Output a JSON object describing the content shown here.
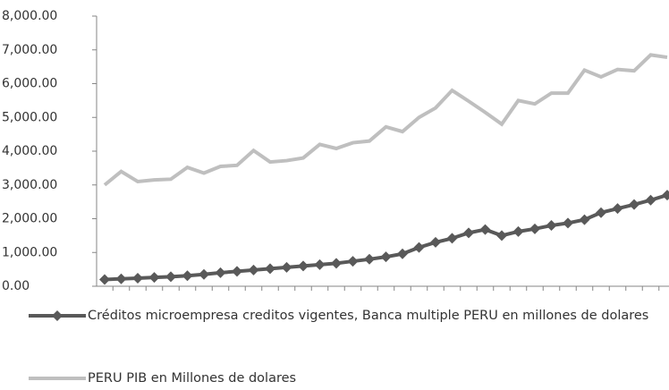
{
  "chart_data": {
    "type": "line",
    "categories": [
      null,
      null,
      null,
      null,
      null,
      null,
      null,
      null,
      null,
      null,
      null,
      null,
      null,
      null,
      null,
      null,
      null,
      null,
      null,
      null,
      null,
      null,
      null,
      null,
      null,
      null,
      null,
      null,
      null,
      null,
      null,
      null,
      null,
      null,
      null
    ],
    "series": [
      {
        "name": "Créditos microempresa creditos vigentes, Banca multiple PERU en millones de dolares",
        "color": "#595959",
        "marker": "diamond",
        "values": [
          200,
          220,
          240,
          260,
          280,
          310,
          350,
          400,
          440,
          480,
          520,
          560,
          600,
          640,
          680,
          740,
          800,
          870,
          960,
          1150,
          1300,
          1420,
          1580,
          1680,
          1500,
          1620,
          1700,
          1800,
          1870,
          1970,
          2180,
          2300,
          2420,
          2550,
          2700
        ]
      },
      {
        "name": "PERU PIB en Millones de dolares",
        "color": "#bfbfbf",
        "values": [
          3000,
          3400,
          3100,
          3150,
          3170,
          3520,
          3350,
          3550,
          3580,
          4020,
          3680,
          3720,
          3800,
          4200,
          4080,
          4250,
          4300,
          4720,
          4580,
          5000,
          5280,
          5800,
          5480,
          5150,
          4800,
          5500,
          5400,
          5720,
          5720,
          6400,
          6200,
          6420,
          6380,
          6850,
          6780
        ]
      }
    ],
    "ylim": [
      0,
      8000
    ],
    "yticks": [
      {
        "value": 0,
        "label": "0.00"
      },
      {
        "value": 1000,
        "label": "1,000.00"
      },
      {
        "value": 2000,
        "label": "2,000.00"
      },
      {
        "value": 3000,
        "label": "3,000.00"
      },
      {
        "value": 4000,
        "label": "4,000.00"
      },
      {
        "value": 5000,
        "label": "5,000.00"
      },
      {
        "value": 6000,
        "label": "6,000.00"
      },
      {
        "value": 7000,
        "label": "7,000.00"
      },
      {
        "value": 8000,
        "label": "8,000.00"
      }
    ],
    "legend": "bottom"
  }
}
